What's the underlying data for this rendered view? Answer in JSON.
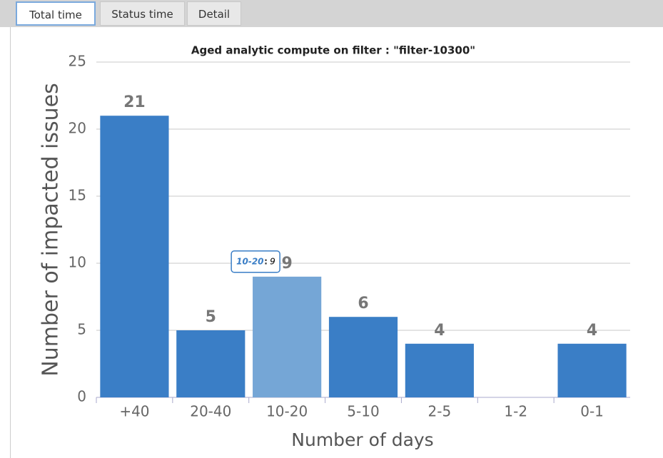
{
  "tabs": [
    {
      "label": "Total time",
      "active": true
    },
    {
      "label": "Status time",
      "active": false
    },
    {
      "label": "Detail",
      "active": false
    }
  ],
  "chart_data": {
    "type": "bar",
    "title": "Aged analytic compute on filter : \"filter-10300\"",
    "x_label": "Number of days",
    "y_label": "Number of impacted issues",
    "categories": [
      "+40",
      "20-40",
      "10-20",
      "5-10",
      "2-5",
      "1-2",
      "0-1"
    ],
    "values": [
      21,
      5,
      9,
      6,
      4,
      null,
      4
    ],
    "color": "#3a7ec6",
    "hover": {
      "index": 2,
      "color": "#75a6d6"
    },
    "tooltip": {
      "label": "10-20",
      "separator": ":",
      "value": 9
    },
    "ylim": [
      0,
      25
    ],
    "yticks": [
      0,
      5,
      10,
      15,
      20,
      25
    ],
    "grid": true
  }
}
